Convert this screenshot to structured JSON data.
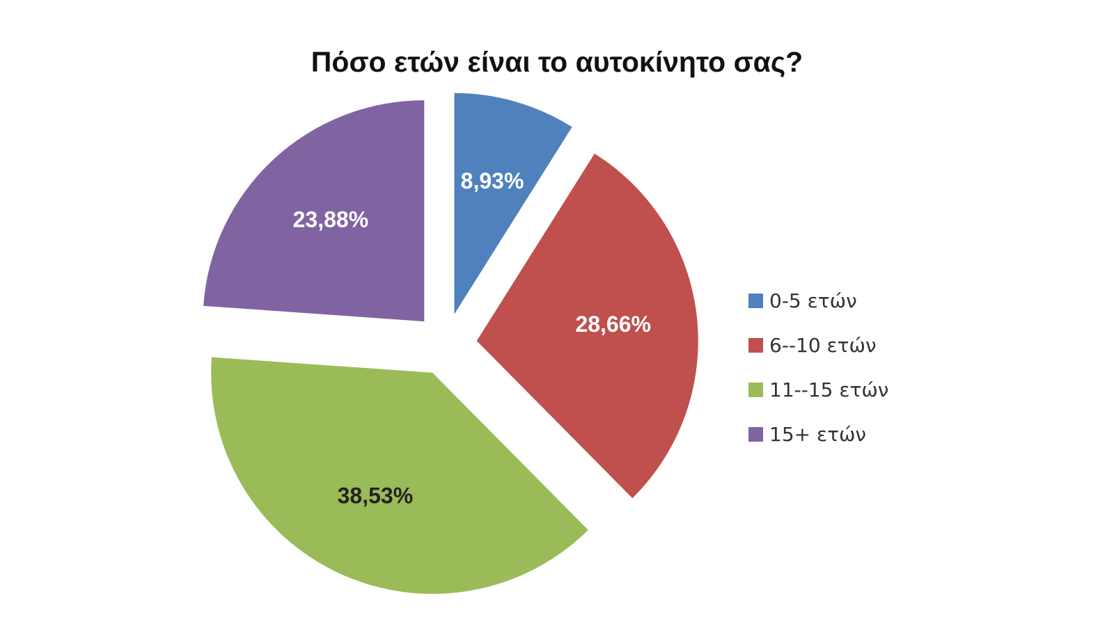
{
  "chart_data": {
    "type": "pie",
    "title": "Πόσο ετών είναι το αυτοκίνητο σας?",
    "categories": [
      "0-5 ετών",
      "6--10 ετών",
      "11--15 ετών",
      "15+ ετών"
    ],
    "values": [
      8.93,
      28.66,
      38.53,
      23.88
    ],
    "value_labels": [
      "8,93%",
      "28,66%",
      "38,53%",
      "23,88%"
    ],
    "colors": [
      "#4F81BD",
      "#C0504D",
      "#9BBB59",
      "#8064A2"
    ],
    "label_colors": [
      "#ffffff",
      "#ffffff",
      "#222222",
      "#ffffff"
    ],
    "exploded": true,
    "legend_position": "right"
  }
}
